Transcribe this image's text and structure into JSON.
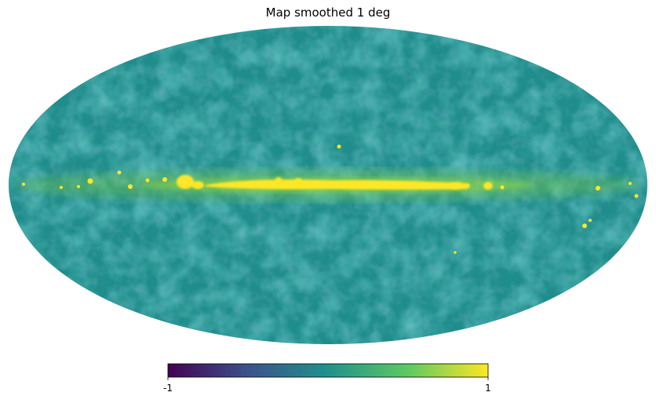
{
  "title": "Map smoothed 1 deg",
  "projection": "mollweide",
  "colormap": {
    "name": "viridis",
    "min_label": "-1",
    "max_label": "1",
    "stops": [
      "#440154",
      "#3b528b",
      "#21918c",
      "#5ec962",
      "#fde725"
    ]
  },
  "colors": {
    "background": "#1f8d8b",
    "noise_dark": "#2a6f8e",
    "noise_light": "#26a585",
    "galactic_plane": "#fde725",
    "plane_halo": "#8fd644"
  }
}
